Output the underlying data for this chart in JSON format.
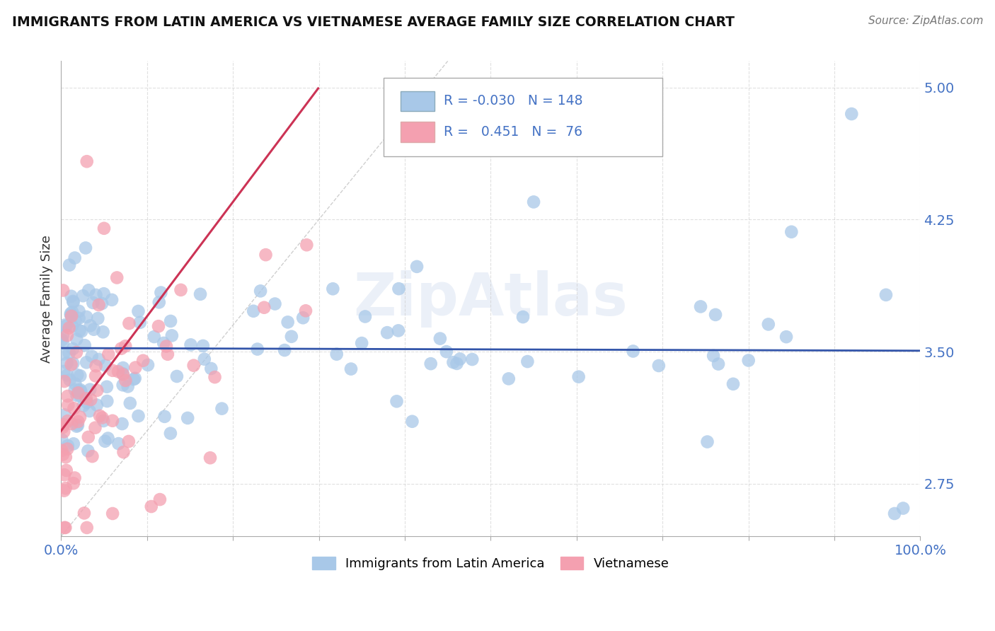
{
  "title": "IMMIGRANTS FROM LATIN AMERICA VS VIETNAMESE AVERAGE FAMILY SIZE CORRELATION CHART",
  "source": "Source: ZipAtlas.com",
  "ylabel": "Average Family Size",
  "xlim": [
    0,
    1.0
  ],
  "ylim": [
    2.45,
    5.15
  ],
  "yticks": [
    2.75,
    3.5,
    4.25,
    5.0
  ],
  "color_latin": "#A8C8E8",
  "color_viet": "#F4A0B0",
  "trendline_latin": "#3355AA",
  "trendline_viet": "#CC3355",
  "watermark": "ZipAtlas",
  "legend_line1": "R = -0.030   N = 148",
  "legend_line2": "R =   0.451   N =  76",
  "bottom_label1": "Immigrants from Latin America",
  "bottom_label2": "Vietnamese"
}
